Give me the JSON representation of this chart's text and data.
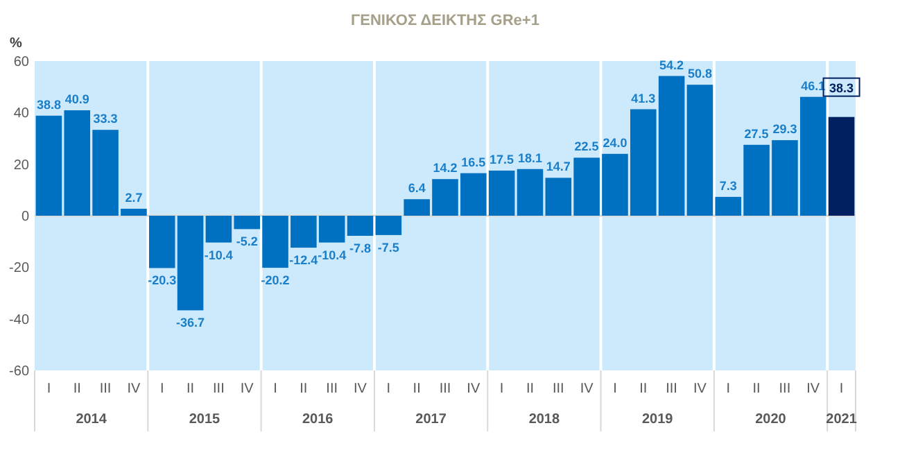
{
  "chart_data": {
    "type": "bar",
    "title": "ΓΕΝΙΚΟΣ ΔΕΙΚΤΗΣ GRe+1",
    "ylabel": "%",
    "categories": [
      "I",
      "II",
      "III",
      "IV",
      "I",
      "II",
      "III",
      "IV",
      "I",
      "II",
      "III",
      "IV",
      "I",
      "II",
      "III",
      "IV",
      "I",
      "II",
      "III",
      "IV",
      "I",
      "II",
      "III",
      "IV",
      "I",
      "II",
      "III",
      "IV",
      "I"
    ],
    "values": [
      38.8,
      40.9,
      33.3,
      2.7,
      -20.3,
      -36.7,
      -10.4,
      -5.2,
      -20.2,
      -12.4,
      -10.4,
      -7.8,
      -7.5,
      6.4,
      14.2,
      16.5,
      17.5,
      18.1,
      14.7,
      22.5,
      24.0,
      41.3,
      54.2,
      50.8,
      7.3,
      27.5,
      29.3,
      46.1,
      38.3
    ],
    "colors": [
      "#0070c0",
      "#0070c0",
      "#0070c0",
      "#0070c0",
      "#0070c0",
      "#0070c0",
      "#0070c0",
      "#0070c0",
      "#0070c0",
      "#0070c0",
      "#0070c0",
      "#0070c0",
      "#0070c0",
      "#0070c0",
      "#0070c0",
      "#0070c0",
      "#0070c0",
      "#0070c0",
      "#0070c0",
      "#0070c0",
      "#0070c0",
      "#0070c0",
      "#0070c0",
      "#0070c0",
      "#0070c0",
      "#0070c0",
      "#0070c0",
      "#0070c0",
      "#002060"
    ],
    "value_labels": [
      "38.8",
      "40.9",
      "33.3",
      "2.7",
      "-20.3",
      "-36.7",
      "-10.4",
      "-5.2",
      "-20.2",
      "-12.4",
      "-10.4",
      "-7.8",
      "-7.5",
      "6.4",
      "14.2",
      "16.5",
      "17.5",
      "18.1",
      "14.7",
      "22.5",
      "24.0",
      "41.3",
      "54.2",
      "50.8",
      "7.3",
      "27.5",
      "29.3",
      "46.1",
      "38.3"
    ],
    "ylim": [
      -60,
      60
    ],
    "yticks": [
      -60,
      -40,
      -20,
      0,
      20,
      40,
      60
    ],
    "grid": false,
    "annotations": [
      "2014",
      "2015",
      "2016",
      "2017",
      "2018",
      "2019",
      "2020",
      "2021"
    ]
  }
}
